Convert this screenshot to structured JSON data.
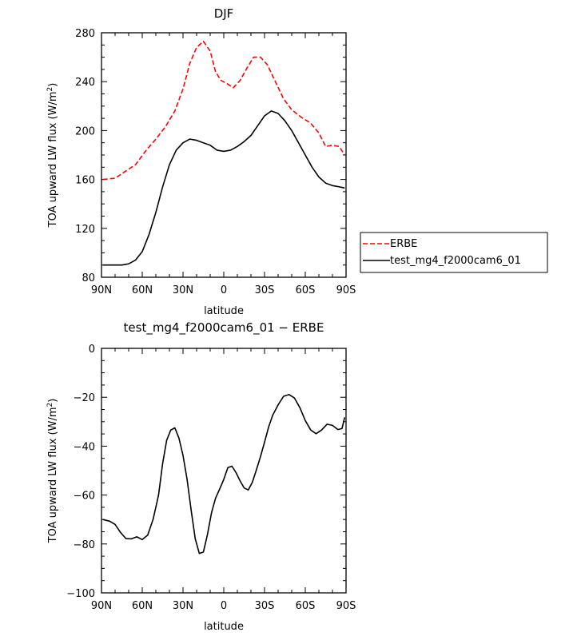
{
  "chart_data": [
    {
      "type": "line",
      "title": "DJF",
      "xlabel": "latitude",
      "ylabel": "TOA upward LW flux (W/m",
      "ylabel_sup": "2",
      "ylabel_end": ")",
      "xlim": [
        90,
        -90
      ],
      "ylim": [
        80,
        280
      ],
      "xticks": [
        90,
        60,
        30,
        0,
        -30,
        -60,
        -90
      ],
      "xtick_labels": [
        "90N",
        "60N",
        "30N",
        "0",
        "30S",
        "60S",
        "90S"
      ],
      "yticks": [
        80,
        120,
        160,
        200,
        240,
        280
      ],
      "ytick_labels": [
        "80",
        "120",
        "160",
        "200",
        "240",
        "280"
      ],
      "legend": [
        "ERBE",
        "test_mg4_f2000cam6_01"
      ],
      "series": [
        {
          "name": "ERBE",
          "color": "#ff0000",
          "dash": true,
          "x": [
            89,
            80,
            72,
            65,
            57,
            50,
            43,
            36,
            30,
            25,
            20,
            15,
            10,
            6,
            2,
            -3,
            -7,
            -12,
            -17,
            -22,
            -27,
            -32,
            -38,
            -44,
            -50,
            -57,
            -64,
            -70,
            -75,
            -80,
            -85,
            -89
          ],
          "y": [
            160,
            161,
            167,
            172,
            184,
            193,
            203,
            216,
            234,
            255,
            268,
            273,
            265,
            248,
            241,
            238,
            235,
            241,
            251,
            260,
            260,
            254,
            240,
            226,
            217,
            211,
            206,
            198,
            187,
            188,
            187,
            180
          ]
        },
        {
          "name": "test_mg4_f2000cam6_01",
          "color": "#000000",
          "dash": false,
          "x": [
            89,
            85,
            80,
            75,
            70,
            65,
            60,
            55,
            50,
            45,
            40,
            35,
            30,
            25,
            20,
            15,
            10,
            5,
            0,
            -5,
            -10,
            -15,
            -20,
            -25,
            -30,
            -35,
            -40,
            -45,
            -50,
            -55,
            -60,
            -65,
            -70,
            -75,
            -80,
            -85,
            -89
          ],
          "y": [
            90,
            90,
            90,
            90,
            91,
            94,
            101,
            115,
            133,
            154,
            172,
            184,
            190,
            193,
            192,
            190,
            188,
            184,
            183,
            184,
            187,
            191,
            196,
            204,
            212,
            216,
            214,
            208,
            200,
            190,
            180,
            170,
            162,
            157,
            155,
            154,
            153
          ]
        }
      ]
    },
    {
      "type": "line",
      "title": "test_mg4_f2000cam6_01 − ERBE",
      "xlabel": "latitude",
      "ylabel": "TOA upward LW flux (W/m",
      "ylabel_sup": "2",
      "ylabel_end": ")",
      "xlim": [
        90,
        -90
      ],
      "ylim": [
        -100,
        0
      ],
      "xticks": [
        90,
        60,
        30,
        0,
        -30,
        -60,
        -90
      ],
      "xtick_labels": [
        "90N",
        "60N",
        "30N",
        "0",
        "30S",
        "60S",
        "90S"
      ],
      "yticks": [
        -100,
        -80,
        -60,
        -40,
        -20,
        0
      ],
      "ytick_labels": [
        "−100",
        "−80",
        "−60",
        "−40",
        "−20",
        "0"
      ],
      "series": [
        {
          "name": "test_mg4_f2000cam6_01 − ERBE",
          "color": "#000000",
          "dash": false,
          "x": [
            89,
            84,
            80,
            76,
            72,
            68,
            64,
            60,
            56,
            52,
            48,
            45,
            42,
            39,
            36,
            33,
            30,
            27,
            24,
            21,
            18,
            15,
            12,
            9,
            6,
            3,
            0,
            -3,
            -6,
            -9,
            -12,
            -15,
            -18,
            -21,
            -24,
            -27,
            -30,
            -33,
            -36,
            -40,
            -44,
            -48,
            -52,
            -56,
            -60,
            -64,
            -68,
            -72,
            -76,
            -80,
            -84,
            -87,
            -89
          ],
          "y": [
            -70,
            -70.7,
            -72,
            -75.3,
            -77.8,
            -77.9,
            -77.1,
            -78.2,
            -76.4,
            -69.9,
            -60,
            -47.1,
            -37.5,
            -33.4,
            -32.5,
            -36.7,
            -43.8,
            -53.6,
            -66.2,
            -77.9,
            -83.9,
            -83.3,
            -76.1,
            -67.2,
            -61.2,
            -57.5,
            -53.6,
            -48.8,
            -48.2,
            -50.8,
            -54.2,
            -57.1,
            -57.9,
            -54.8,
            -49.7,
            -44.3,
            -38.4,
            -32.2,
            -27.4,
            -23.1,
            -19.6,
            -18.9,
            -20.3,
            -24.2,
            -29.5,
            -33.4,
            -34.9,
            -33.4,
            -31,
            -31.5,
            -33.2,
            -32.8,
            -28.2
          ]
        }
      ]
    }
  ]
}
